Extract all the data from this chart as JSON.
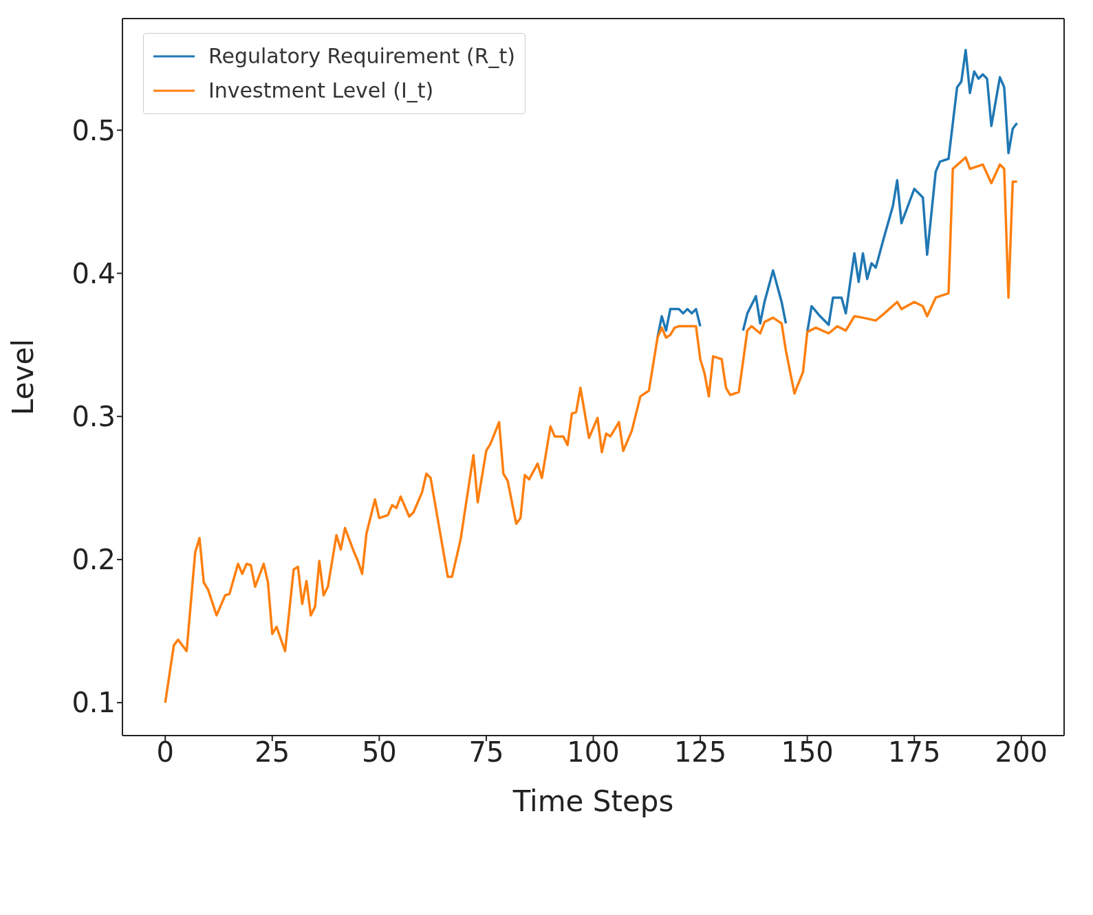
{
  "chart_data": {
    "type": "line",
    "xlabel": "Time Steps",
    "ylabel": "Level",
    "xlim": [
      -10,
      210
    ],
    "xticks": [
      0,
      25,
      50,
      75,
      100,
      125,
      150,
      175,
      200
    ],
    "ylim": [
      0.077,
      0.578
    ],
    "yticks": [
      0.1,
      0.2,
      0.3,
      0.4,
      0.5
    ],
    "grid": false,
    "legend": "top left",
    "line_style": "solid",
    "marker": "none",
    "series": [
      {
        "name": "Regulatory Requirement (R_t)",
        "color": "#1f77b4",
        "x": [
          115,
          116,
          117,
          118,
          120,
          121,
          122,
          123,
          124,
          125,
          130,
          135,
          136,
          138,
          139,
          140,
          142,
          144,
          145,
          148,
          150,
          151,
          153,
          155,
          156,
          158,
          159,
          161,
          162,
          163,
          164,
          165,
          166,
          168,
          170,
          171,
          172,
          175,
          177,
          178,
          180,
          181,
          183,
          185,
          186,
          187,
          188,
          189,
          190,
          191,
          192,
          193,
          195,
          196,
          197,
          198,
          199
        ],
        "values": [
          0.355,
          0.37,
          0.36,
          0.375,
          0.375,
          0.372,
          0.375,
          0.372,
          0.375,
          0.363,
          null,
          0.36,
          0.372,
          0.384,
          0.365,
          0.38,
          0.402,
          0.38,
          0.365,
          null,
          0.359,
          0.377,
          0.37,
          0.364,
          0.383,
          0.383,
          0.372,
          0.414,
          0.394,
          0.414,
          0.396,
          0.407,
          0.404,
          0.426,
          0.447,
          0.465,
          0.435,
          0.459,
          0.453,
          0.413,
          0.471,
          0.478,
          0.48,
          0.53,
          0.534,
          0.556,
          0.526,
          0.541,
          0.536,
          0.539,
          0.536,
          0.503,
          0.537,
          0.53,
          0.484,
          0.501,
          0.505
        ]
      },
      {
        "name": "Investment Level (I_t)",
        "color": "#ff7f0e",
        "x": [
          0,
          2,
          3,
          5,
          7,
          8,
          9,
          10,
          12,
          14,
          15,
          17,
          18,
          19,
          20,
          21,
          23,
          24,
          25,
          26,
          28,
          30,
          31,
          32,
          33,
          34,
          35,
          36,
          37,
          38,
          40,
          41,
          42,
          44,
          45,
          46,
          47,
          49,
          50,
          52,
          53,
          54,
          55,
          57,
          58,
          60,
          61,
          62,
          66,
          67,
          69,
          72,
          73,
          75,
          76,
          78,
          79,
          80,
          82,
          83,
          84,
          85,
          87,
          88,
          90,
          91,
          93,
          94,
          95,
          96,
          97,
          99,
          101,
          102,
          103,
          104,
          106,
          107,
          109,
          111,
          113,
          115,
          116,
          117,
          118,
          119,
          120,
          124,
          125,
          126,
          127,
          128,
          130,
          131,
          132,
          134,
          136,
          137,
          139,
          140,
          142,
          144,
          145,
          147,
          149,
          150,
          152,
          155,
          157,
          159,
          161,
          163,
          166,
          168,
          171,
          172,
          175,
          177,
          178,
          180,
          183,
          184,
          187,
          188,
          191,
          193,
          195,
          196,
          197,
          198,
          199
        ],
        "values": [
          0.1,
          0.14,
          0.144,
          0.136,
          0.205,
          0.215,
          0.184,
          0.179,
          0.161,
          0.175,
          0.176,
          0.197,
          0.19,
          0.197,
          0.196,
          0.181,
          0.197,
          0.184,
          0.148,
          0.153,
          0.136,
          0.193,
          0.195,
          0.169,
          0.185,
          0.161,
          0.167,
          0.199,
          0.175,
          0.181,
          0.217,
          0.207,
          0.222,
          0.206,
          0.199,
          0.19,
          0.218,
          0.242,
          0.229,
          0.231,
          0.238,
          0.236,
          0.244,
          0.23,
          0.233,
          0.247,
          0.26,
          0.257,
          0.188,
          0.188,
          0.214,
          0.273,
          0.24,
          0.276,
          0.281,
          0.296,
          0.26,
          0.255,
          0.225,
          0.229,
          0.259,
          0.256,
          0.267,
          0.257,
          0.293,
          0.286,
          0.286,
          0.28,
          0.302,
          0.303,
          0.32,
          0.285,
          0.299,
          0.275,
          0.288,
          0.286,
          0.296,
          0.276,
          0.29,
          0.314,
          0.318,
          0.355,
          0.362,
          0.355,
          0.357,
          0.362,
          0.363,
          0.363,
          0.34,
          0.33,
          0.314,
          0.342,
          0.34,
          0.32,
          0.315,
          0.317,
          0.36,
          0.363,
          0.358,
          0.366,
          0.369,
          0.365,
          0.346,
          0.316,
          0.331,
          0.359,
          0.362,
          0.358,
          0.363,
          0.36,
          0.37,
          0.369,
          0.367,
          0.372,
          0.38,
          0.375,
          0.38,
          0.377,
          0.37,
          0.383,
          0.386,
          0.473,
          0.481,
          0.473,
          0.476,
          0.463,
          0.476,
          0.473,
          0.383,
          0.464,
          0.464
        ]
      }
    ]
  }
}
